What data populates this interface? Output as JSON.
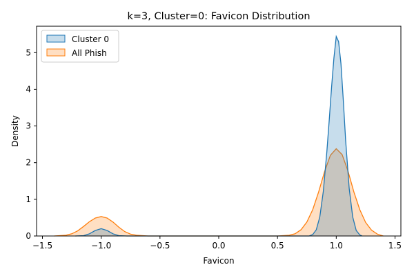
{
  "chart_data": {
    "type": "area",
    "title": "k=3, Cluster=0: Favicon Distribution",
    "xlabel": "Favicon",
    "ylabel": "Density",
    "xlim": [
      -1.55,
      1.55
    ],
    "ylim": [
      0,
      5.72
    ],
    "xticks": [
      -1.5,
      -1.0,
      -0.5,
      0.0,
      0.5,
      1.0,
      1.5
    ],
    "xtick_labels": [
      "−1.5",
      "−1.0",
      "−0.5",
      "0.0",
      "0.5",
      "1.0",
      "1.5"
    ],
    "yticks": [
      0,
      1,
      2,
      3,
      4,
      5
    ],
    "ytick_labels": [
      "0",
      "1",
      "2",
      "3",
      "4",
      "5"
    ],
    "grid": false,
    "legend": {
      "position": "top-left"
    },
    "series": [
      {
        "name": "Cluster 0",
        "color": "#1f77b4",
        "fill_opacity": 0.25,
        "x": [
          -1.22,
          -1.15,
          -1.1,
          -1.05,
          -1.0,
          -0.95,
          -0.9,
          -0.85,
          -0.78,
          0.77,
          0.8,
          0.83,
          0.86,
          0.89,
          0.92,
          0.94,
          0.96,
          0.98,
          1.0,
          1.02,
          1.04,
          1.06,
          1.08,
          1.11,
          1.14,
          1.17,
          1.2,
          1.22
        ],
        "values": [
          0.0,
          0.01,
          0.06,
          0.15,
          0.2,
          0.15,
          0.06,
          0.01,
          0.0,
          0.0,
          0.04,
          0.17,
          0.52,
          1.22,
          2.3,
          3.15,
          4.05,
          4.85,
          5.44,
          5.3,
          4.7,
          3.7,
          2.6,
          1.3,
          0.52,
          0.15,
          0.03,
          0.0
        ],
        "label_count": 1
      },
      {
        "name": "All Phish",
        "color": "#ff7f0e",
        "fill_opacity": 0.25,
        "x": [
          -1.4,
          -1.3,
          -1.25,
          -1.2,
          -1.15,
          -1.1,
          -1.05,
          -1.0,
          -0.95,
          -0.9,
          -0.85,
          -0.8,
          -0.75,
          -0.7,
          -0.6,
          -0.5,
          0.0,
          0.5,
          0.6,
          0.65,
          0.7,
          0.75,
          0.8,
          0.85,
          0.9,
          0.95,
          1.0,
          1.05,
          1.1,
          1.15,
          1.2,
          1.25,
          1.3,
          1.35,
          1.4
        ],
        "values": [
          0.0,
          0.02,
          0.06,
          0.14,
          0.26,
          0.39,
          0.49,
          0.53,
          0.49,
          0.38,
          0.24,
          0.12,
          0.05,
          0.02,
          0.0,
          0.0,
          0.0,
          0.0,
          0.02,
          0.06,
          0.17,
          0.38,
          0.72,
          1.2,
          1.75,
          2.2,
          2.38,
          2.22,
          1.77,
          1.2,
          0.72,
          0.37,
          0.16,
          0.05,
          0.0
        ]
      }
    ]
  }
}
